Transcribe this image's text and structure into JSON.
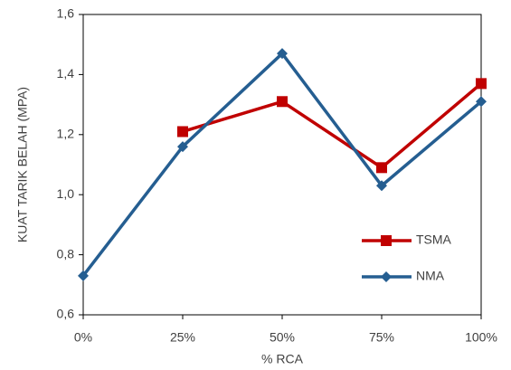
{
  "chart_data": {
    "type": "line",
    "x_label": "% RCA",
    "y_label": "KUAT TARIK BELAH (MPA)",
    "categories": [
      "0%",
      "25%",
      "50%",
      "75%",
      "100%"
    ],
    "series": [
      {
        "name": "TSMA",
        "color": "#c00000",
        "marker": "square",
        "values": [
          null,
          1.21,
          1.31,
          1.09,
          1.37
        ]
      },
      {
        "name": "NMA",
        "color": "#255e91",
        "marker": "diamond",
        "values": [
          0.73,
          1.16,
          1.47,
          1.03,
          1.31
        ]
      }
    ],
    "ylim": [
      0.6,
      1.6
    ],
    "yticks": [
      {
        "value": 0.6,
        "label": "0,6"
      },
      {
        "value": 0.8,
        "label": "0,8"
      },
      {
        "value": 1.0,
        "label": "1,0"
      },
      {
        "value": 1.2,
        "label": "1,2"
      },
      {
        "value": 1.4,
        "label": "1,4"
      },
      {
        "value": 1.6,
        "label": "1,6"
      }
    ],
    "grid": false,
    "legend": "lower right"
  }
}
